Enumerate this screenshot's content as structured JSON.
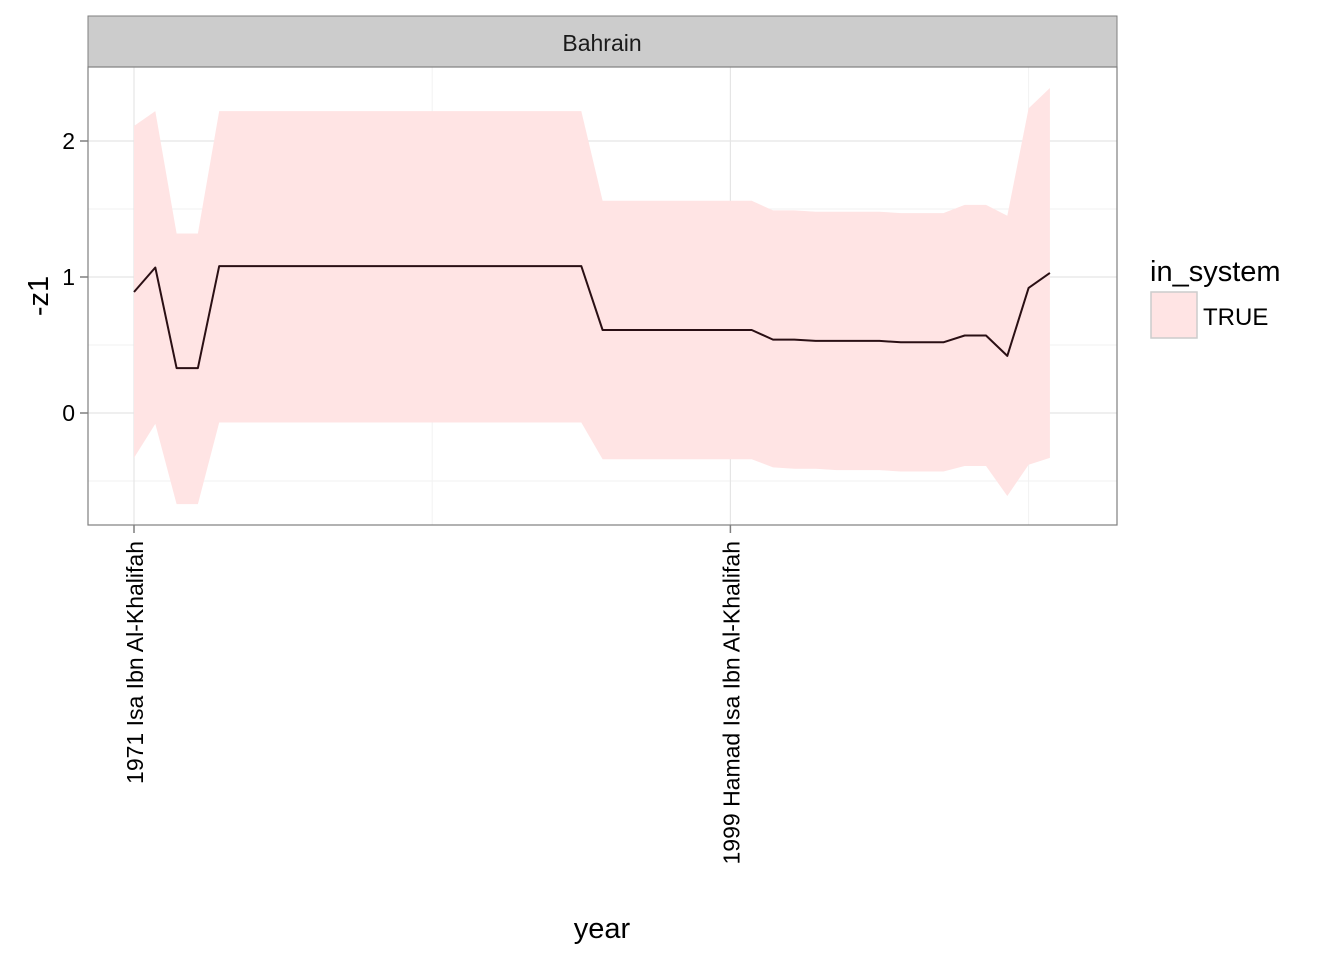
{
  "chart_data": {
    "type": "area",
    "facet_label": "Bahrain",
    "xlabel": "year",
    "ylabel": "-z1",
    "x_range": [
      1971,
      2015
    ],
    "ylim": [
      -0.8,
      2.5
    ],
    "y_ticks": [
      0,
      1,
      2
    ],
    "x_ticks": [
      {
        "value": 1971,
        "label": "1971 Isa Ibn Al-Khalifah"
      },
      {
        "value": 1999,
        "label": "1999 Hamad Isa Ibn Al-Khalifah"
      }
    ],
    "x_minor_gridlines": [
      1985,
      2013
    ],
    "grid": true,
    "legend": {
      "title": "in_system",
      "position": "right",
      "entries": [
        {
          "label": "TRUE",
          "color": "#ffe4e4"
        }
      ]
    },
    "ribbon_color": "#ffe4e4",
    "line_color": "#2a0f14",
    "series": [
      {
        "x": [
          1971,
          1972,
          1973,
          1974,
          1975,
          1976,
          1977,
          1978,
          1979,
          1980,
          1981,
          1982,
          1983,
          1984,
          1985,
          1986,
          1987,
          1988,
          1989,
          1990,
          1991,
          1992,
          1993,
          1994,
          1995,
          1996,
          1997,
          1998,
          1999,
          2000,
          2001,
          2002,
          2003,
          2004,
          2005,
          2006,
          2007,
          2008,
          2009,
          2010,
          2011,
          2012,
          2013,
          2014
        ],
        "y": [
          0.89,
          1.07,
          0.33,
          0.33,
          1.08,
          1.08,
          1.08,
          1.08,
          1.08,
          1.08,
          1.08,
          1.08,
          1.08,
          1.08,
          1.08,
          1.08,
          1.08,
          1.08,
          1.08,
          1.08,
          1.08,
          1.08,
          0.61,
          0.61,
          0.61,
          0.61,
          0.61,
          0.61,
          0.61,
          0.61,
          0.54,
          0.54,
          0.53,
          0.53,
          0.53,
          0.53,
          0.52,
          0.52,
          0.52,
          0.57,
          0.57,
          0.42,
          0.92,
          1.03
        ],
        "ymin": [
          -0.33,
          -0.08,
          -0.67,
          -0.67,
          -0.07,
          -0.07,
          -0.07,
          -0.07,
          -0.07,
          -0.07,
          -0.07,
          -0.07,
          -0.07,
          -0.07,
          -0.07,
          -0.07,
          -0.07,
          -0.07,
          -0.07,
          -0.07,
          -0.07,
          -0.07,
          -0.34,
          -0.34,
          -0.34,
          -0.34,
          -0.34,
          -0.34,
          -0.34,
          -0.34,
          -0.4,
          -0.41,
          -0.41,
          -0.42,
          -0.42,
          -0.42,
          -0.43,
          -0.43,
          -0.43,
          -0.39,
          -0.39,
          -0.61,
          -0.38,
          -0.33
        ],
        "ymax": [
          2.11,
          2.22,
          1.32,
          1.32,
          2.22,
          2.22,
          2.22,
          2.22,
          2.22,
          2.22,
          2.22,
          2.22,
          2.22,
          2.22,
          2.22,
          2.22,
          2.22,
          2.22,
          2.22,
          2.22,
          2.22,
          2.22,
          1.56,
          1.56,
          1.56,
          1.56,
          1.56,
          1.56,
          1.56,
          1.56,
          1.49,
          1.49,
          1.48,
          1.48,
          1.48,
          1.48,
          1.47,
          1.47,
          1.47,
          1.53,
          1.53,
          1.45,
          2.24,
          2.39
        ]
      }
    ]
  }
}
